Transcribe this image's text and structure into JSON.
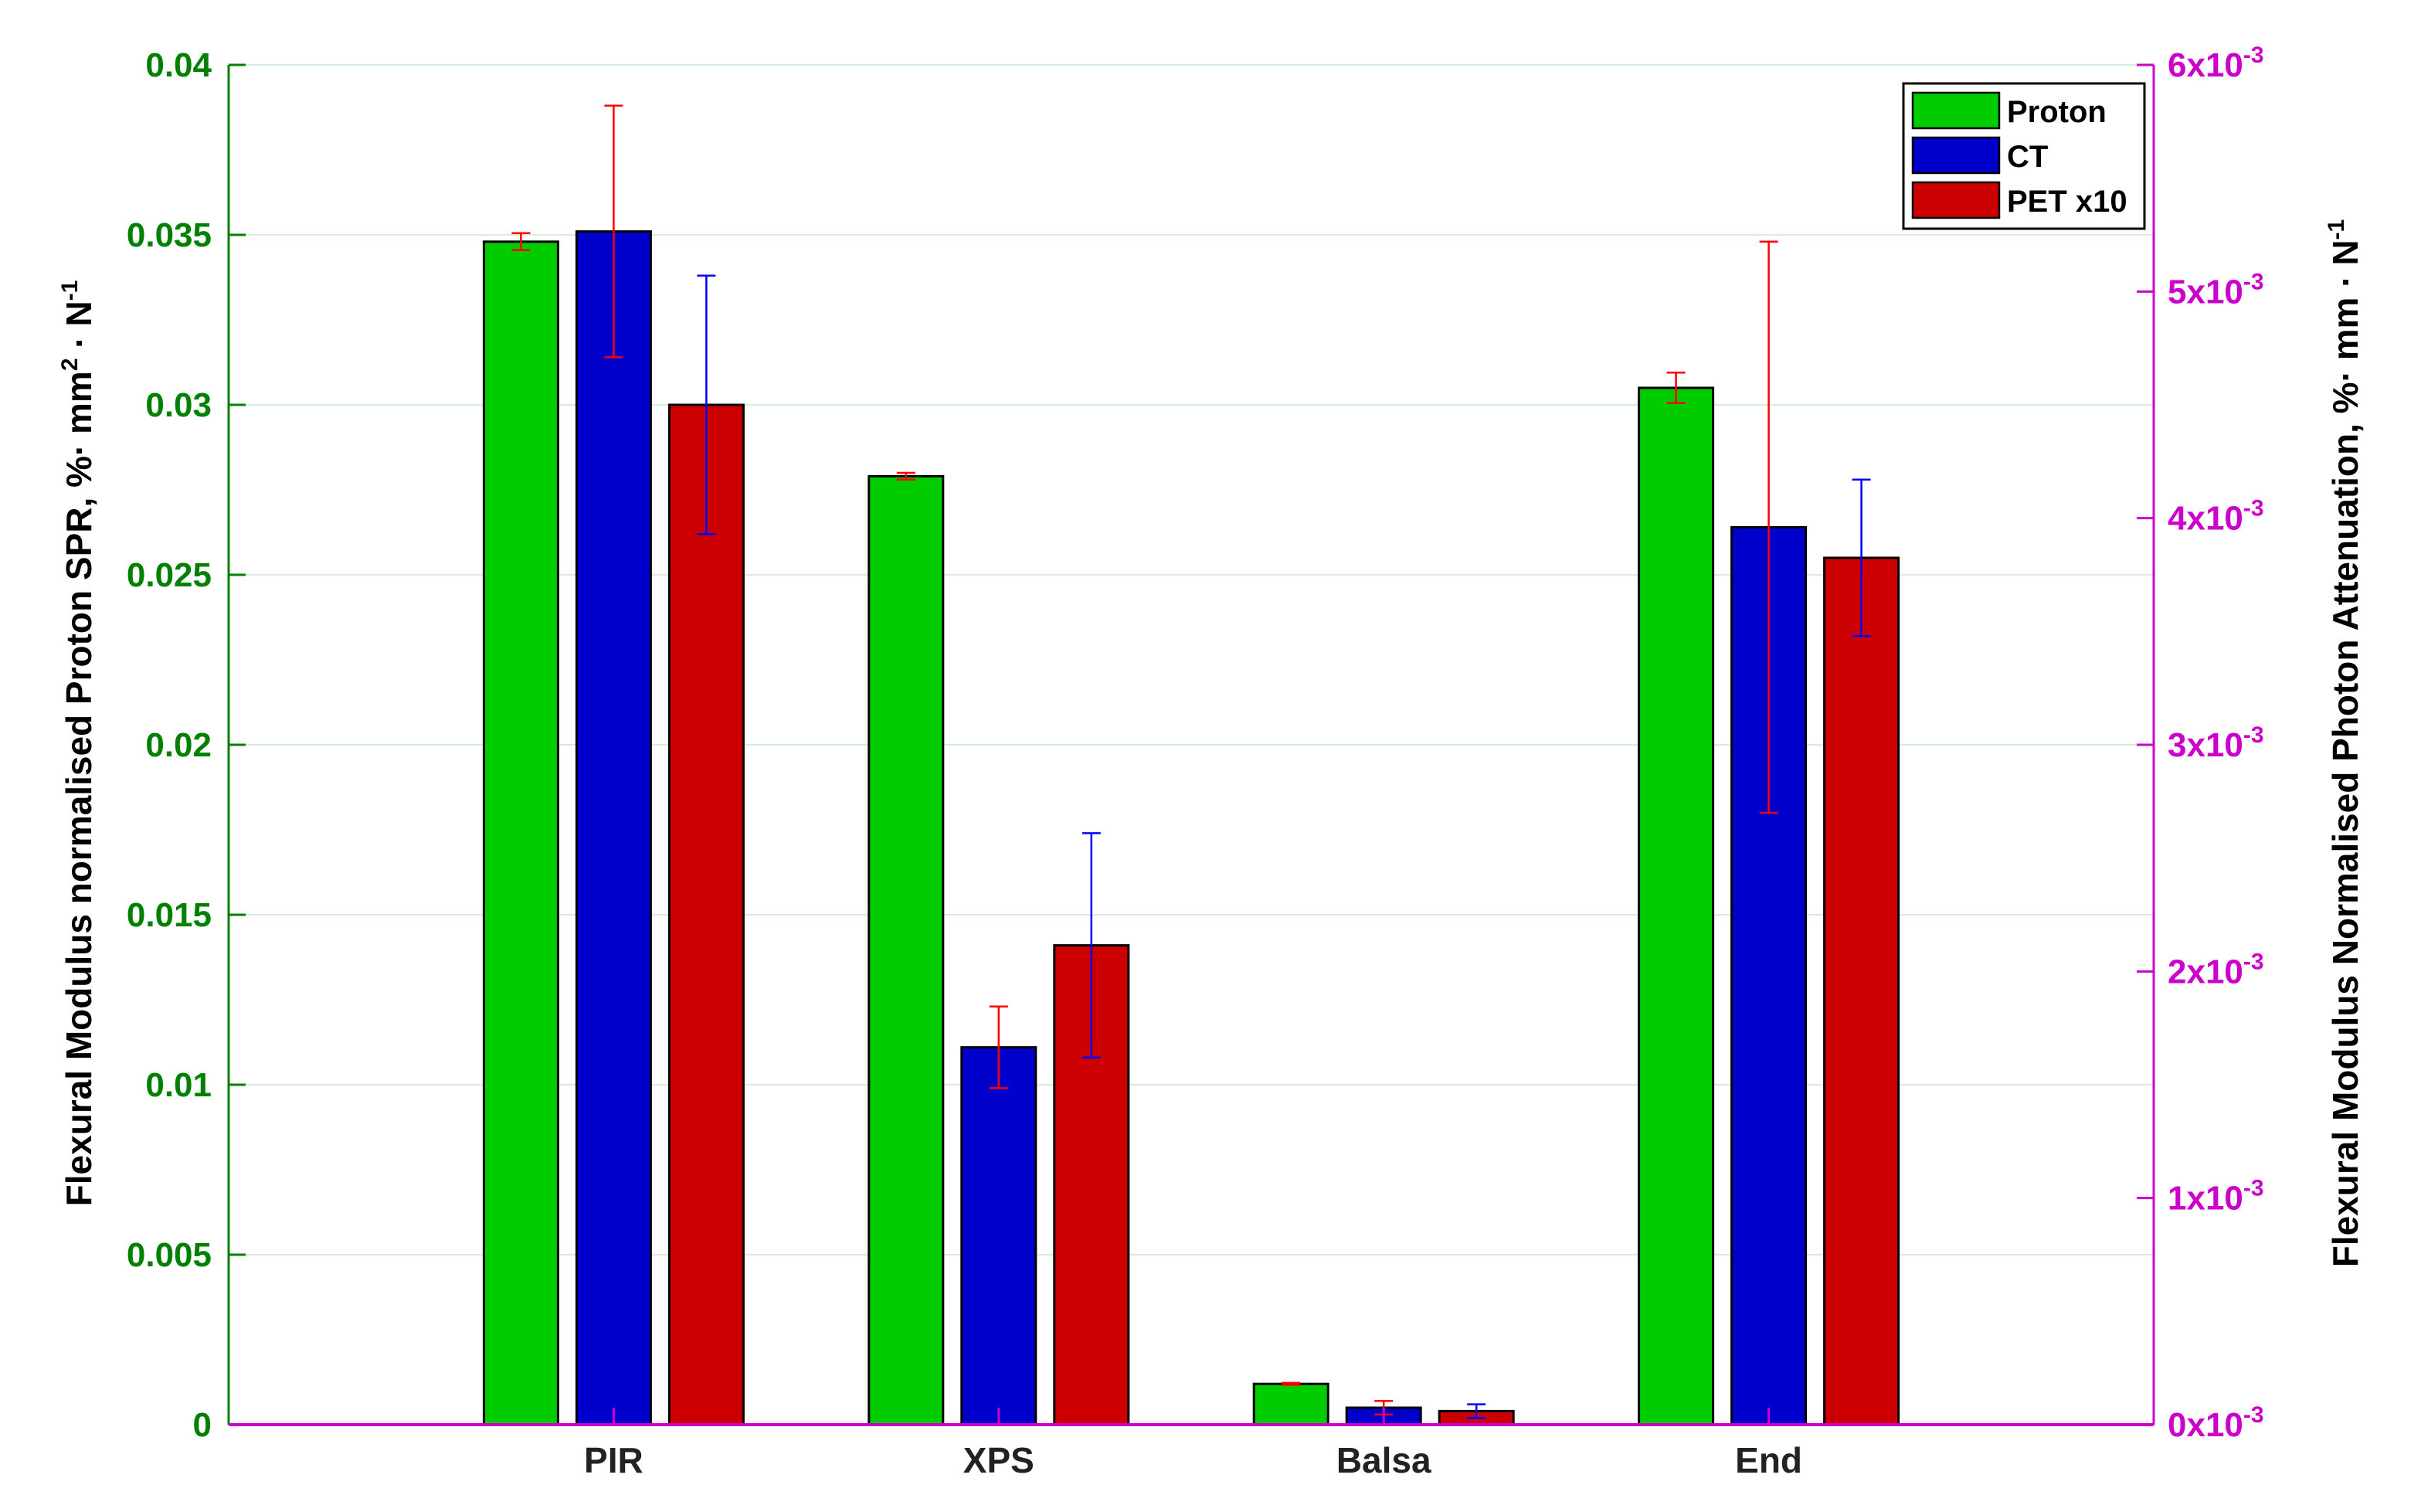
{
  "chart_data": {
    "type": "bar",
    "categories": [
      "PIR",
      "XPS",
      "Balsa",
      "End"
    ],
    "series": [
      {
        "name": "Proton",
        "color": "#00cc00",
        "values": [
          0.0348,
          0.0279,
          0.0012,
          0.0305
        ],
        "errors": [
          0.00025,
          0.0001,
          3e-05,
          0.00045
        ],
        "error_color": "#ff0000"
      },
      {
        "name": "CT",
        "color": "#0000cc",
        "values": [
          0.0351,
          0.0111,
          0.0005,
          0.0264
        ],
        "errors": [
          0.0037,
          0.0012,
          0.0002,
          0.0084
        ],
        "error_color": "#ff0000"
      },
      {
        "name": "PET x10",
        "color": "#cc0000",
        "values": [
          0.03,
          0.0141,
          0.0004,
          0.0255
        ],
        "errors": [
          0.0038,
          0.0033,
          0.0002,
          0.0023
        ],
        "error_color": "#0000ff"
      }
    ],
    "ylim": [
      0,
      0.04
    ],
    "yticks": [
      "0",
      "0.005",
      "0.01",
      "0.015",
      "0.02",
      "0.025",
      "0.03",
      "0.035",
      "0.04"
    ],
    "ylabel": "Flexural Modulus normalised Proton SPR, %· mm",
    "ylabel_sup": "2",
    "ylabel_tail": " · N",
    "ylabel_tail_sup": "-1",
    "y2lim": [
      0,
      0.006
    ],
    "y2ticks": [
      "0x10",
      "1x10",
      "2x10",
      "3x10",
      "4x10",
      "5x10",
      "6x10"
    ],
    "y2tick_exp": "-3",
    "y2label": "Flexural Modulus Normalised Photon Attenuation, %· mm · N",
    "y2label_sup": "-1",
    "xlim": [
      0,
      5
    ],
    "grid": true,
    "legend_position": "top-right",
    "left_axis_color": "#008000",
    "right_axis_color": "#cc00cc",
    "grid_color": "#d8ecd8"
  }
}
